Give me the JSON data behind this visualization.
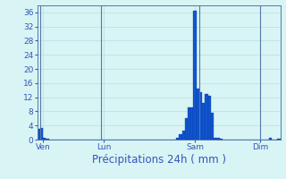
{
  "title": "",
  "xlabel": "Précipitations 24h ( mm )",
  "background_color": "#d8f4f4",
  "bar_color": "#1155cc",
  "bar_edge_color": "#0033aa",
  "grid_color": "#b8dede",
  "tick_color": "#3355bb",
  "label_color": "#3355bb",
  "ylim": [
    0,
    38
  ],
  "yticks": [
    0,
    4,
    8,
    12,
    16,
    20,
    24,
    28,
    32,
    36
  ],
  "bar_values": [
    3.0,
    3.2,
    0.5,
    0.2,
    0.0,
    0.0,
    0.0,
    0.0,
    0.0,
    0.0,
    0.0,
    0.0,
    0.0,
    0.0,
    0.0,
    0.0,
    0.0,
    0.0,
    0.0,
    0.0,
    0.0,
    0.0,
    0.0,
    0.0,
    0.0,
    0.0,
    0.0,
    0.0,
    0.0,
    0.0,
    0.0,
    0.0,
    0.0,
    0.0,
    0.0,
    0.0,
    0.0,
    0.0,
    0.0,
    0.0,
    0.0,
    0.0,
    0.0,
    0.0,
    0.0,
    0.0,
    0.0,
    0.0,
    0.5,
    1.5,
    2.5,
    6.0,
    9.0,
    9.2,
    36.5,
    14.5,
    13.5,
    10.5,
    12.8,
    12.5,
    7.5,
    0.5,
    0.5,
    0.3,
    0.0,
    0.0,
    0.0,
    0.0,
    0.0,
    0.0,
    0.0,
    0.0,
    0.0,
    0.0,
    0.0,
    0.0,
    0.0,
    0.0,
    0.0,
    0.0,
    0.5,
    0.0,
    0.0,
    0.3
  ],
  "day_labels": [
    "Ven",
    "Lun",
    "Sam",
    "Dim"
  ],
  "day_positions": [
    1.5,
    22.5,
    54.0,
    76.5
  ],
  "vline_positions": [
    0.5,
    21.5,
    55.5,
    76.5
  ],
  "xlabel_fontsize": 8.5,
  "tick_fontsize": 6.5
}
